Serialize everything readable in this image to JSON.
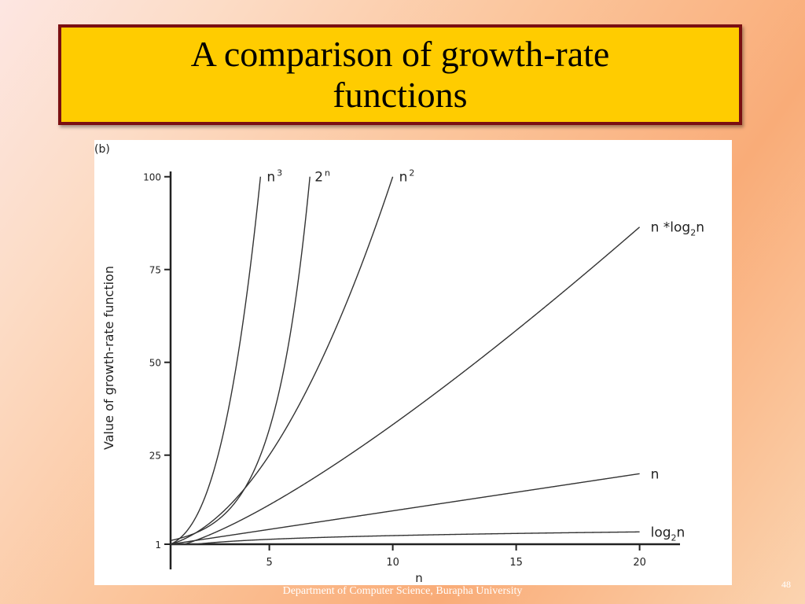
{
  "slide": {
    "title": "A comparison of growth-rate functions",
    "footer": "Department of Computer Science, Burapha University",
    "page_number": "48"
  },
  "chart_data": {
    "type": "line",
    "panel_label": "(b)",
    "xlabel": "n",
    "ylabel": "Value of growth-rate function",
    "xlim": [
      1,
      20
    ],
    "ylim": [
      1,
      100
    ],
    "x_ticks": [
      5,
      10,
      15,
      20
    ],
    "y_ticks": [
      1,
      25,
      50,
      75,
      100
    ],
    "grid": false,
    "series": [
      {
        "name": "2^n",
        "label_parts": [
          "2",
          "n"
        ],
        "label_style": "superscript",
        "function": "pow2",
        "x": [
          1,
          2,
          3,
          4,
          5,
          6,
          6.64
        ],
        "y": [
          2,
          4,
          8,
          16,
          32,
          64,
          100
        ]
      },
      {
        "name": "n^3",
        "label_parts": [
          "n",
          "3"
        ],
        "label_style": "superscript",
        "function": "cube",
        "x": [
          1,
          2,
          3,
          4,
          4.64
        ],
        "y": [
          1,
          8,
          27,
          64,
          100
        ]
      },
      {
        "name": "n^2",
        "label_parts": [
          "n",
          "2"
        ],
        "label_style": "superscript",
        "function": "square",
        "x": [
          1,
          2,
          4,
          6,
          8,
          10
        ],
        "y": [
          1,
          4,
          16,
          36,
          64,
          100
        ]
      },
      {
        "name": "n *log2n",
        "label_parts": [
          "n *log",
          "2",
          "n"
        ],
        "label_style": "subscript",
        "function": "nlogn",
        "x": [
          1,
          5,
          10,
          15,
          20
        ],
        "y": [
          0,
          11.6,
          33.2,
          58.6,
          86.4
        ]
      },
      {
        "name": "n",
        "label_parts": [
          "n"
        ],
        "label_style": "plain",
        "function": "linear",
        "x": [
          1,
          20
        ],
        "y": [
          1,
          20
        ]
      },
      {
        "name": "log2n",
        "label_parts": [
          "log",
          "2",
          "n"
        ],
        "label_style": "subscript",
        "function": "log2",
        "x": [
          1,
          5,
          10,
          15,
          20
        ],
        "y": [
          0,
          2.32,
          3.32,
          3.91,
          4.32
        ]
      }
    ]
  }
}
